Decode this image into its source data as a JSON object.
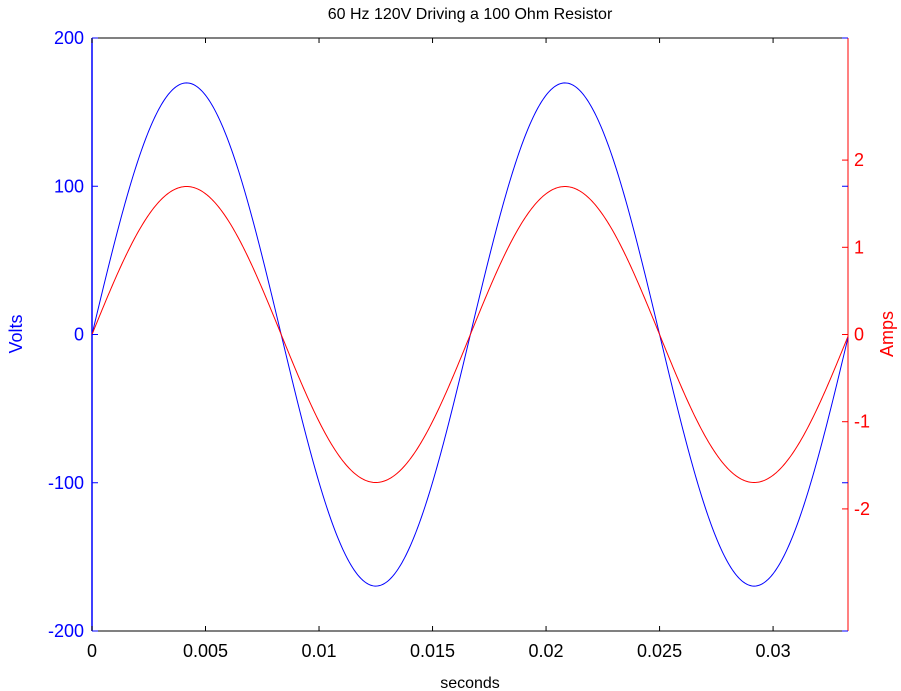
{
  "chart_data": {
    "type": "line",
    "title": "60 Hz 120V Driving a 100 Ohm Resistor",
    "xlabel": "seconds",
    "ylabel_left": "Volts",
    "ylabel_right": "Amps",
    "xlim": [
      0,
      0.0333
    ],
    "ylim_left": [
      -200,
      200
    ],
    "ylim_right": [
      -3.4,
      3.4
    ],
    "grid": false,
    "x_ticks": [
      0,
      0.005,
      0.01,
      0.015,
      0.02,
      0.025,
      0.03
    ],
    "x_tick_labels": [
      "0",
      "0.005",
      "0.01",
      "0.015",
      "0.02",
      "0.025",
      "0.03"
    ],
    "y_left_ticks": [
      -200,
      -100,
      0,
      100,
      200
    ],
    "y_left_tick_labels": [
      "-200",
      "-100",
      "0",
      "100",
      "200"
    ],
    "y_right_ticks": [
      -2,
      -1,
      0,
      1,
      2
    ],
    "y_right_tick_labels": [
      "-2",
      "-1",
      "0",
      "1",
      "2"
    ],
    "colors": {
      "left_axis": "#0000ff",
      "right_axis": "#ff0000",
      "axes": "#000000"
    },
    "series": [
      {
        "axis": "left",
        "color": "#0000ff",
        "frequency_hz": 60,
        "amplitude": 169.7,
        "x": [
          0,
          0.002,
          0.00417,
          0.006,
          0.00833,
          0.011,
          0.0125,
          0.014,
          0.01667,
          0.019,
          0.02083,
          0.023,
          0.025,
          0.027,
          0.02917,
          0.031,
          0.0333
        ],
        "values": [
          0,
          120.2,
          169.7,
          158.0,
          0,
          -148.9,
          -169.7,
          -138.3,
          0,
          136.4,
          169.7,
          140.4,
          0,
          -149.8,
          -169.7,
          -139.8,
          0
        ]
      },
      {
        "axis": "right",
        "color": "#ff0000",
        "frequency_hz": 60,
        "amplitude": 1.697,
        "x": [
          0,
          0.002,
          0.00417,
          0.006,
          0.00833,
          0.011,
          0.0125,
          0.014,
          0.01667,
          0.019,
          0.02083,
          0.023,
          0.025,
          0.027,
          0.02917,
          0.031,
          0.0333
        ],
        "values": [
          0,
          1.202,
          1.697,
          1.58,
          0,
          -1.489,
          -1.697,
          -1.383,
          0,
          1.364,
          1.697,
          1.404,
          0,
          -1.498,
          -1.697,
          -1.398,
          0
        ]
      }
    ]
  }
}
